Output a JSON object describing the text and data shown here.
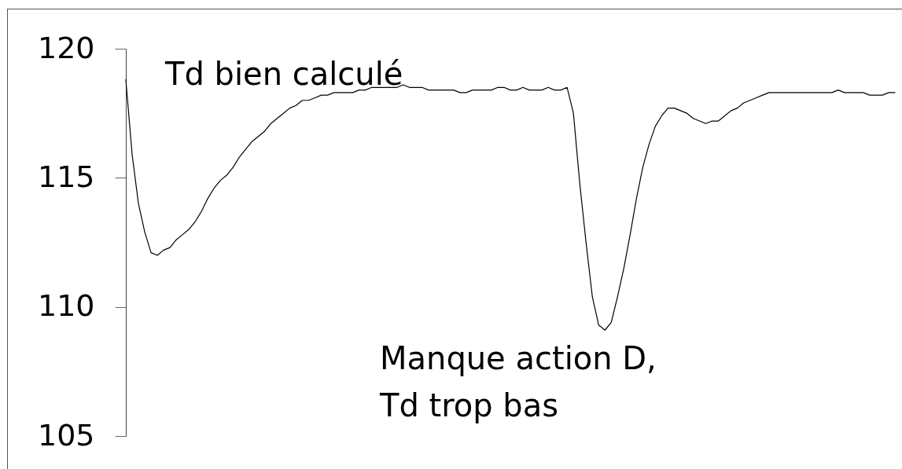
{
  "chart_data": {
    "type": "line",
    "categories": [
      null,
      null,
      null,
      null,
      null,
      null,
      null,
      null,
      null,
      null,
      null,
      null,
      null,
      null,
      null,
      null,
      null,
      null,
      null,
      null,
      null,
      null,
      null,
      null,
      null,
      null,
      null,
      null,
      null,
      null,
      null,
      null,
      null,
      null,
      null,
      null,
      null,
      null,
      null,
      null,
      null,
      null,
      null,
      null,
      null,
      null,
      null,
      null,
      null,
      null,
      null,
      null,
      null,
      null,
      null,
      null,
      null,
      null,
      null,
      null,
      null,
      null,
      null,
      null,
      null,
      null,
      null,
      null,
      null,
      null,
      null,
      null,
      null,
      null,
      null,
      null,
      null,
      null,
      null,
      null,
      null,
      null,
      null,
      null,
      null,
      null,
      null,
      null,
      null,
      null,
      null,
      null,
      null,
      null,
      null,
      null,
      null,
      null,
      null,
      null,
      null,
      null,
      null,
      null,
      null,
      null,
      null,
      null,
      null,
      null,
      null,
      null,
      null,
      null,
      null,
      null,
      null,
      null,
      null,
      null,
      null,
      null,
      null
    ],
    "series": [
      {
        "color": "#000000",
        "values": [
          118.8,
          115.9,
          114.0,
          112.9,
          112.1,
          112.0,
          112.2,
          112.3,
          112.6,
          112.8,
          113.0,
          113.3,
          113.7,
          114.2,
          114.6,
          114.9,
          115.1,
          115.4,
          115.8,
          116.1,
          116.4,
          116.6,
          116.8,
          117.1,
          117.3,
          117.5,
          117.7,
          117.8,
          118.0,
          118.0,
          118.1,
          118.2,
          118.2,
          118.3,
          118.3,
          118.3,
          118.3,
          118.4,
          118.4,
          118.5,
          118.5,
          118.5,
          118.5,
          118.5,
          118.6,
          118.5,
          118.5,
          118.5,
          118.4,
          118.4,
          118.4,
          118.4,
          118.4,
          118.3,
          118.3,
          118.4,
          118.4,
          118.4,
          118.4,
          118.5,
          118.5,
          118.4,
          118.4,
          118.5,
          118.4,
          118.4,
          118.4,
          118.5,
          118.4,
          118.4,
          118.5,
          117.5,
          114.8,
          112.5,
          110.4,
          109.3,
          109.1,
          109.4,
          110.4,
          111.5,
          112.8,
          114.2,
          115.4,
          116.3,
          117.0,
          117.4,
          117.7,
          117.7,
          117.6,
          117.5,
          117.3,
          117.2,
          117.1,
          117.2,
          117.2,
          117.4,
          117.6,
          117.7,
          117.9,
          118.0,
          118.1,
          118.2,
          118.3,
          118.3,
          118.3,
          118.3,
          118.3,
          118.3,
          118.3,
          118.3,
          118.3,
          118.3,
          118.3,
          118.4,
          118.3,
          118.3,
          118.3,
          118.3,
          118.2,
          118.2,
          118.2,
          118.3,
          118.3
        ]
      }
    ],
    "ylim": [
      105,
      120
    ],
    "yticks": [
      105,
      110,
      115,
      120
    ],
    "annotations": [
      "Td bien calculé",
      "Manque action D,\nTd trop bas"
    ]
  }
}
